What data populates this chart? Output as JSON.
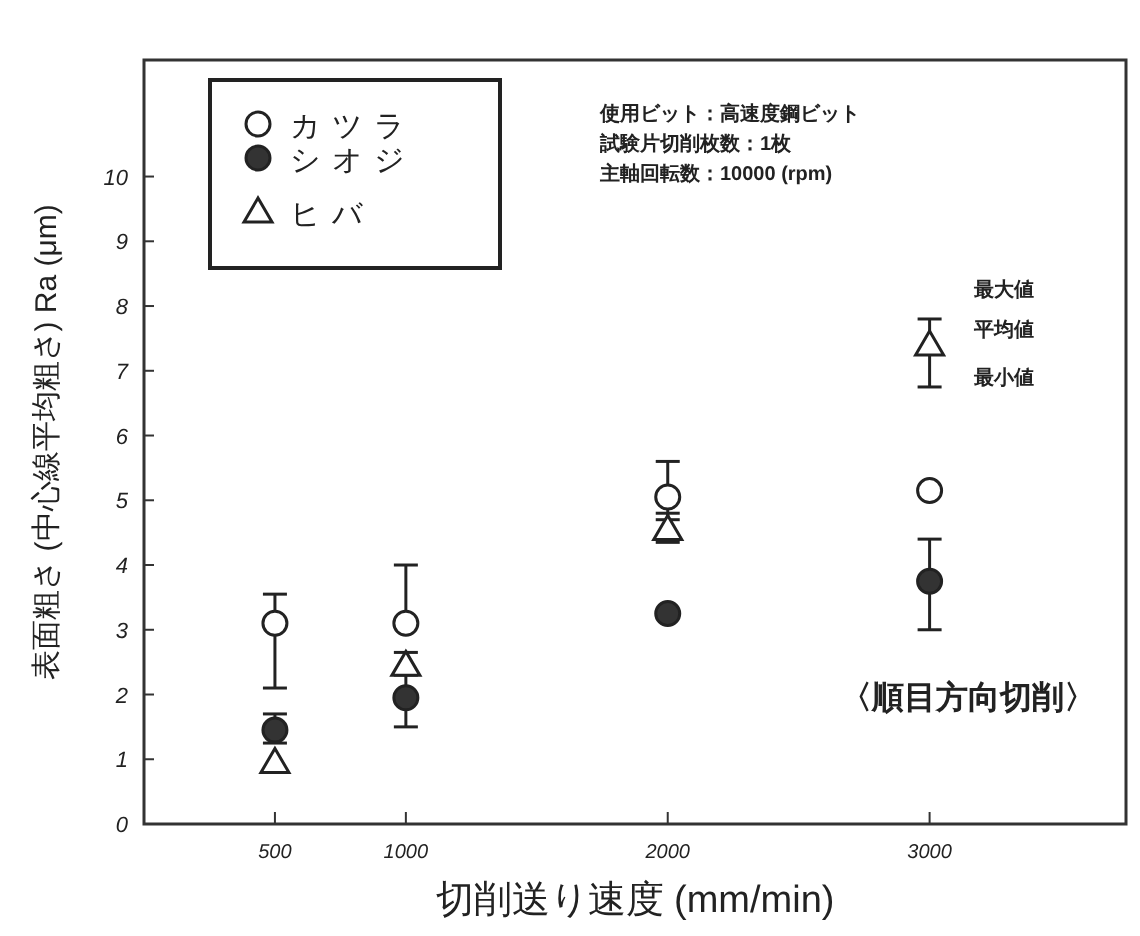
{
  "chart_data": {
    "type": "scatter",
    "xlabel": "切削送り速度 (mm/min)",
    "ylabel": "表面粗さ (中心線平均粗さ) Ra (μm)",
    "x": [
      500,
      1000,
      2000,
      3000
    ],
    "xlim": [
      0,
      3750
    ],
    "xticks": [
      500,
      1000,
      2000,
      3000
    ],
    "ylim": [
      0,
      11.8
    ],
    "yticks": [
      0,
      1,
      2,
      3,
      4,
      5,
      6,
      7,
      8,
      9,
      10
    ],
    "series": [
      {
        "name": "カツラ",
        "color": "#ffffff",
        "marker": "circle",
        "values": [
          3.1,
          3.1,
          5.05,
          5.15
        ],
        "errors": [
          [
            2.1,
            3.55
          ],
          [
            3.1,
            4.0
          ],
          [
            4.7,
            5.6
          ],
          null
        ]
      },
      {
        "name": "シオジ",
        "color": "#333333",
        "marker": "circle",
        "values": [
          1.45,
          1.95,
          3.25,
          3.75
        ],
        "errors": [
          [
            1.25,
            1.7
          ],
          [
            1.5,
            2.35
          ],
          null,
          [
            3.0,
            4.4
          ]
        ]
      },
      {
        "name": "ヒバ",
        "color": "#ffffff",
        "marker": "triangle",
        "values": [
          0.95,
          2.45,
          4.55,
          7.4
        ],
        "errors": [
          null,
          [
            2.3,
            2.65
          ],
          [
            4.35,
            4.8
          ],
          [
            6.75,
            7.8
          ]
        ]
      }
    ],
    "legend": "top left",
    "grid": false,
    "annotations": [
      "使用ビット：高速度鋼ビット",
      "試験片切削枚数：1枚",
      "主軸回転数：10000 (rpm)",
      "最大値",
      "平均値",
      "最小値",
      "〈順目方向切削〉"
    ]
  }
}
